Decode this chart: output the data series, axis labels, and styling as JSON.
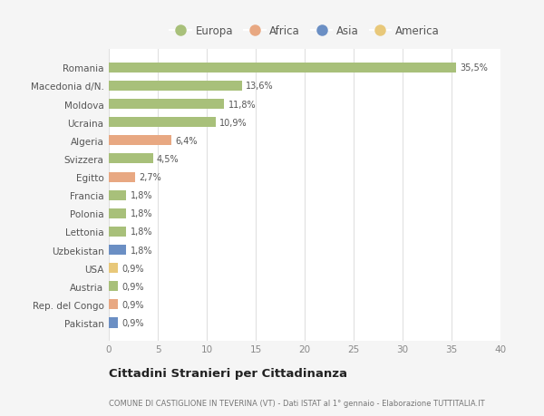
{
  "countries": [
    "Romania",
    "Macedonia d/N.",
    "Moldova",
    "Ucraina",
    "Algeria",
    "Svizzera",
    "Egitto",
    "Francia",
    "Polonia",
    "Lettonia",
    "Uzbekistan",
    "USA",
    "Austria",
    "Rep. del Congo",
    "Pakistan"
  ],
  "values": [
    35.5,
    13.6,
    11.8,
    10.9,
    6.4,
    4.5,
    2.7,
    1.8,
    1.8,
    1.8,
    1.8,
    0.9,
    0.9,
    0.9,
    0.9
  ],
  "labels": [
    "35,5%",
    "13,6%",
    "11,8%",
    "10,9%",
    "6,4%",
    "4,5%",
    "2,7%",
    "1,8%",
    "1,8%",
    "1,8%",
    "1,8%",
    "0,9%",
    "0,9%",
    "0,9%",
    "0,9%"
  ],
  "regions": [
    "Europa",
    "Europa",
    "Europa",
    "Europa",
    "Africa",
    "Europa",
    "Africa",
    "Europa",
    "Europa",
    "Europa",
    "Asia",
    "America",
    "Europa",
    "Africa",
    "Asia"
  ],
  "colors": {
    "Europa": "#a8c07a",
    "Africa": "#e8a882",
    "Asia": "#6b8fc4",
    "America": "#e8c87a"
  },
  "legend_order": [
    "Europa",
    "Africa",
    "Asia",
    "America"
  ],
  "title": "Cittadini Stranieri per Cittadinanza",
  "subtitle": "COMUNE DI CASTIGLIONE IN TEVERINA (VT) - Dati ISTAT al 1° gennaio - Elaborazione TUTTITALIA.IT",
  "xlim": [
    0,
    40
  ],
  "xticks": [
    0,
    5,
    10,
    15,
    20,
    25,
    30,
    35,
    40
  ],
  "background_color": "#f5f5f5",
  "plot_bg_color": "#ffffff",
  "grid_color": "#e0e0e0",
  "bar_height": 0.55
}
